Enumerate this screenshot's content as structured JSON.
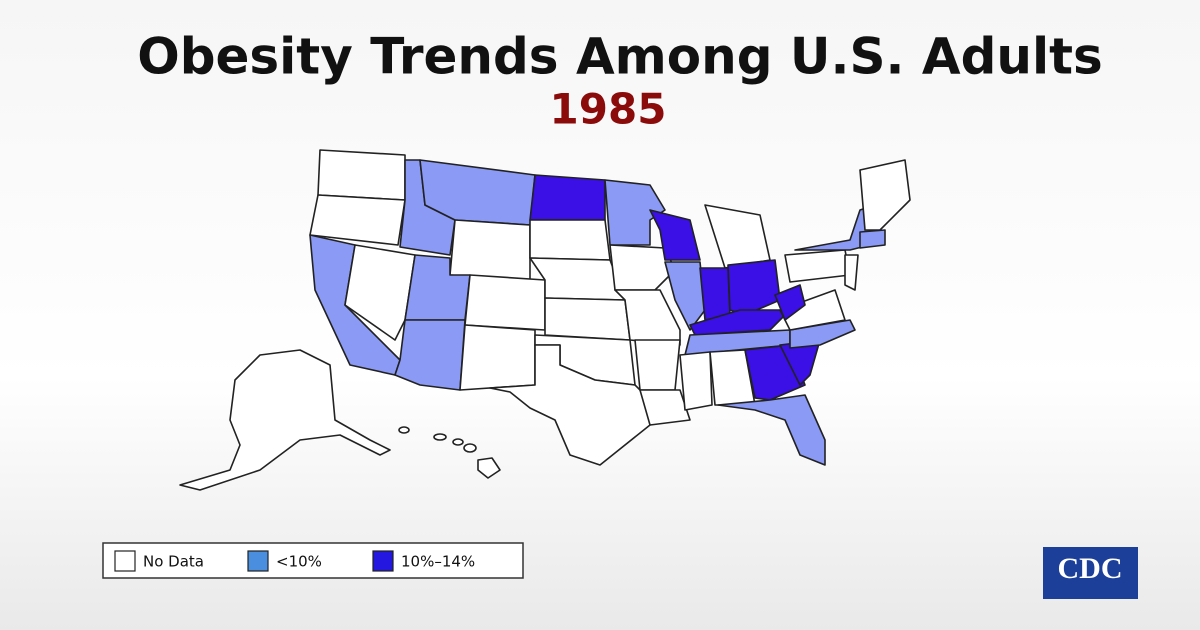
{
  "header": {
    "title": "Obesity Trends Among U.S. Adults",
    "year": "1985"
  },
  "legend": [
    {
      "label": "No Data",
      "color": "#ffffff"
    },
    {
      "label": "<10%",
      "color": "#4a8ee0"
    },
    {
      "label": "10%–14%",
      "color": "#2418e0"
    }
  ],
  "logo": {
    "text": "CDC"
  }
}
